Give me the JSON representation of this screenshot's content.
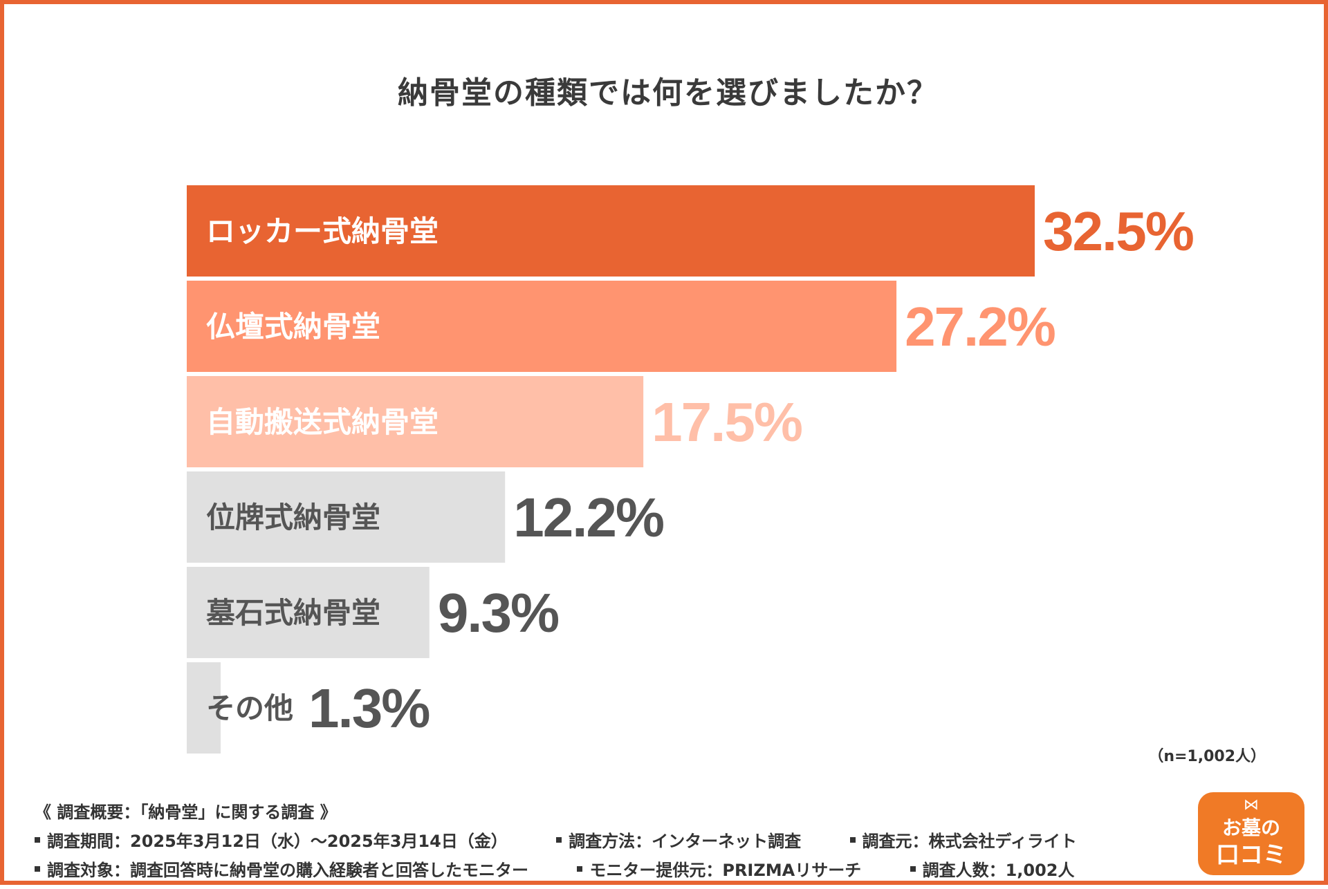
{
  "chart_data": {
    "type": "bar",
    "orientation": "horizontal",
    "title": "納骨堂の種類では何を選びましたか？",
    "categories": [
      "ロッカー式納骨堂",
      "仏壇式納骨堂",
      "自動搬送式納骨堂",
      "位牌式納骨堂",
      "墓石式納骨堂",
      "その他"
    ],
    "values": [
      32.5,
      27.2,
      17.5,
      12.2,
      9.3,
      1.3
    ],
    "value_labels": [
      "32.5%",
      "27.2%",
      "17.5%",
      "12.2%",
      "9.3%",
      "1.3%"
    ],
    "unit": "%",
    "xlim": [
      0,
      32.5
    ],
    "colors": [
      "#e86432",
      "#ff9470",
      "#ffbfa8",
      "#e0e0e0",
      "#e0e0e0",
      "#e0e0e0"
    ],
    "label_colors": [
      "#ffffff",
      "#ffffff",
      "#ffffff",
      "#555555",
      "#555555",
      "#555555"
    ],
    "value_colors": [
      "#e86432",
      "#ff9470",
      "#ffbfa8",
      "#555555",
      "#555555",
      "#555555"
    ],
    "sample_note": "（n=1,002人）"
  },
  "footer": {
    "heading": "《 調査概要：「納骨堂」に関する調査 》",
    "line1": [
      "調査期間：2025年3月12日（水）〜2025年3月14日（金）",
      "調査方法：インターネット調査",
      "調査元：株式会社ディライト"
    ],
    "line2": [
      "調査対象：調査回答時に納骨堂の購入経験者と回答したモニター",
      "モニター提供元：PRIZMAリサーチ",
      "調査人数：1,002人"
    ]
  },
  "logo": {
    "line1": "お墓の",
    "line2": "口コミ"
  },
  "colors": {
    "frame": "#e86432",
    "logo": "#f07a26",
    "text": "#333333"
  }
}
